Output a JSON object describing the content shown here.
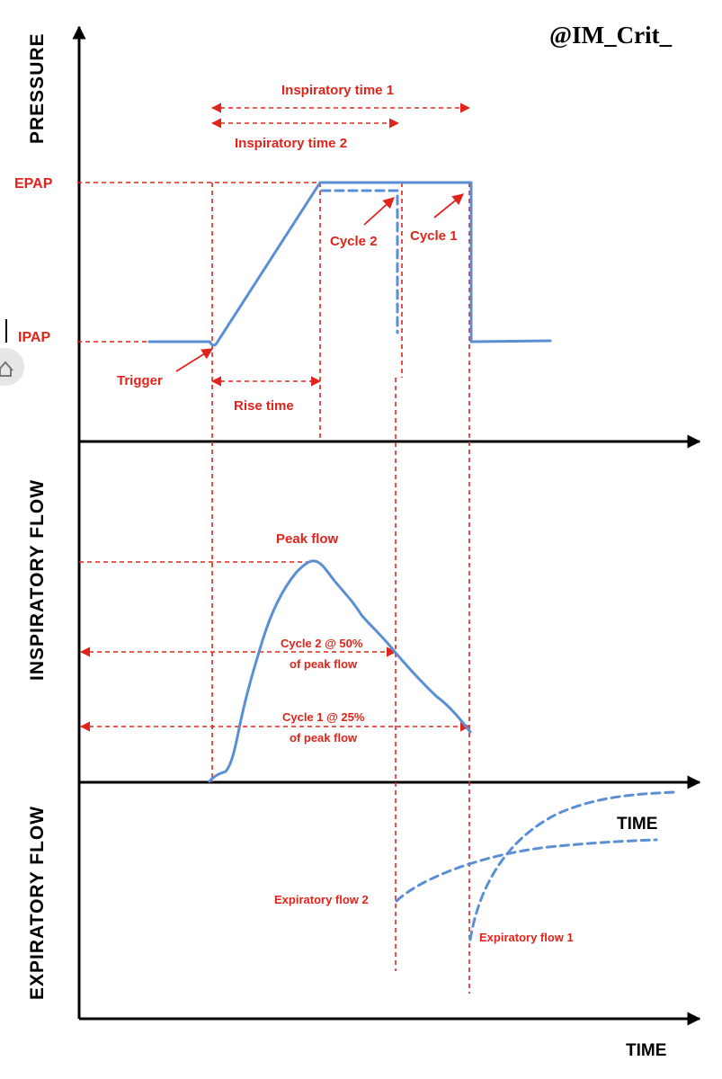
{
  "brand": "@IM_Crit_",
  "axes": {
    "pressure": "PRESSURE",
    "inspiratory_flow": "INSPIRATORY FLOW",
    "expiratory_flow": "EXPIRATORY FLOW",
    "time_mid": "TIME",
    "time_bottom": "TIME"
  },
  "pressure_panel": {
    "epap": "EPAP",
    "ipap": "IPAP",
    "insp_time_1": "Inspiratory time 1",
    "insp_time_2": "Inspiratory time 2",
    "cycle_1": "Cycle 1",
    "cycle_2": "Cycle 2",
    "trigger": "Trigger",
    "rise_time": "Rise time"
  },
  "flow_panel": {
    "peak_flow": "Peak flow",
    "cycle2_line1": "Cycle 2 @ 50%",
    "cycle2_line2": "of peak flow",
    "cycle1_line1": "Cycle 1 @ 25%",
    "cycle1_line2": "of peak flow"
  },
  "expiratory_panel": {
    "exp_flow_2": "Expiratory flow 2",
    "exp_flow_1": "Expiratory flow 1"
  },
  "colors": {
    "annotation": "#e0241b",
    "waveform": "#5b8fd4",
    "axis": "#000000"
  }
}
